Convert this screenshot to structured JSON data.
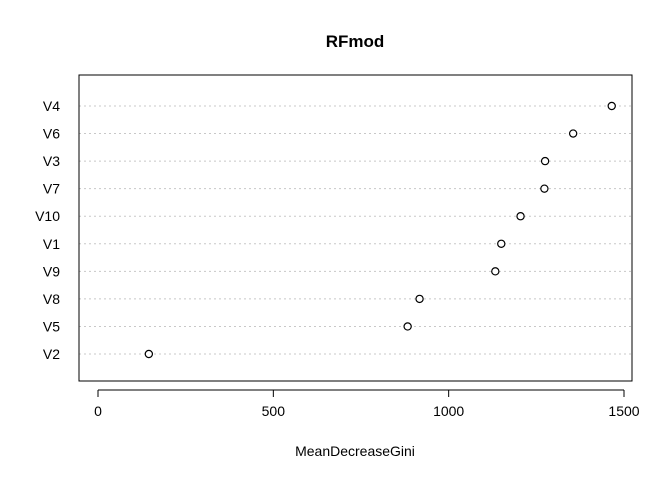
{
  "chart_data": {
    "type": "scatter",
    "subtype": "dotchart",
    "title": "RFmod",
    "xlabel": "MeanDecreaseGini",
    "ylabel": "",
    "xlim": [
      0,
      1500
    ],
    "xticks": [
      0,
      500,
      1000,
      1500
    ],
    "grid": "horizontal dotted",
    "categories": [
      "V4",
      "V6",
      "V3",
      "V7",
      "V10",
      "V1",
      "V9",
      "V8",
      "V5",
      "V2"
    ],
    "values": [
      1465,
      1355,
      1275,
      1273,
      1205,
      1150,
      1133,
      917,
      883,
      145
    ]
  }
}
